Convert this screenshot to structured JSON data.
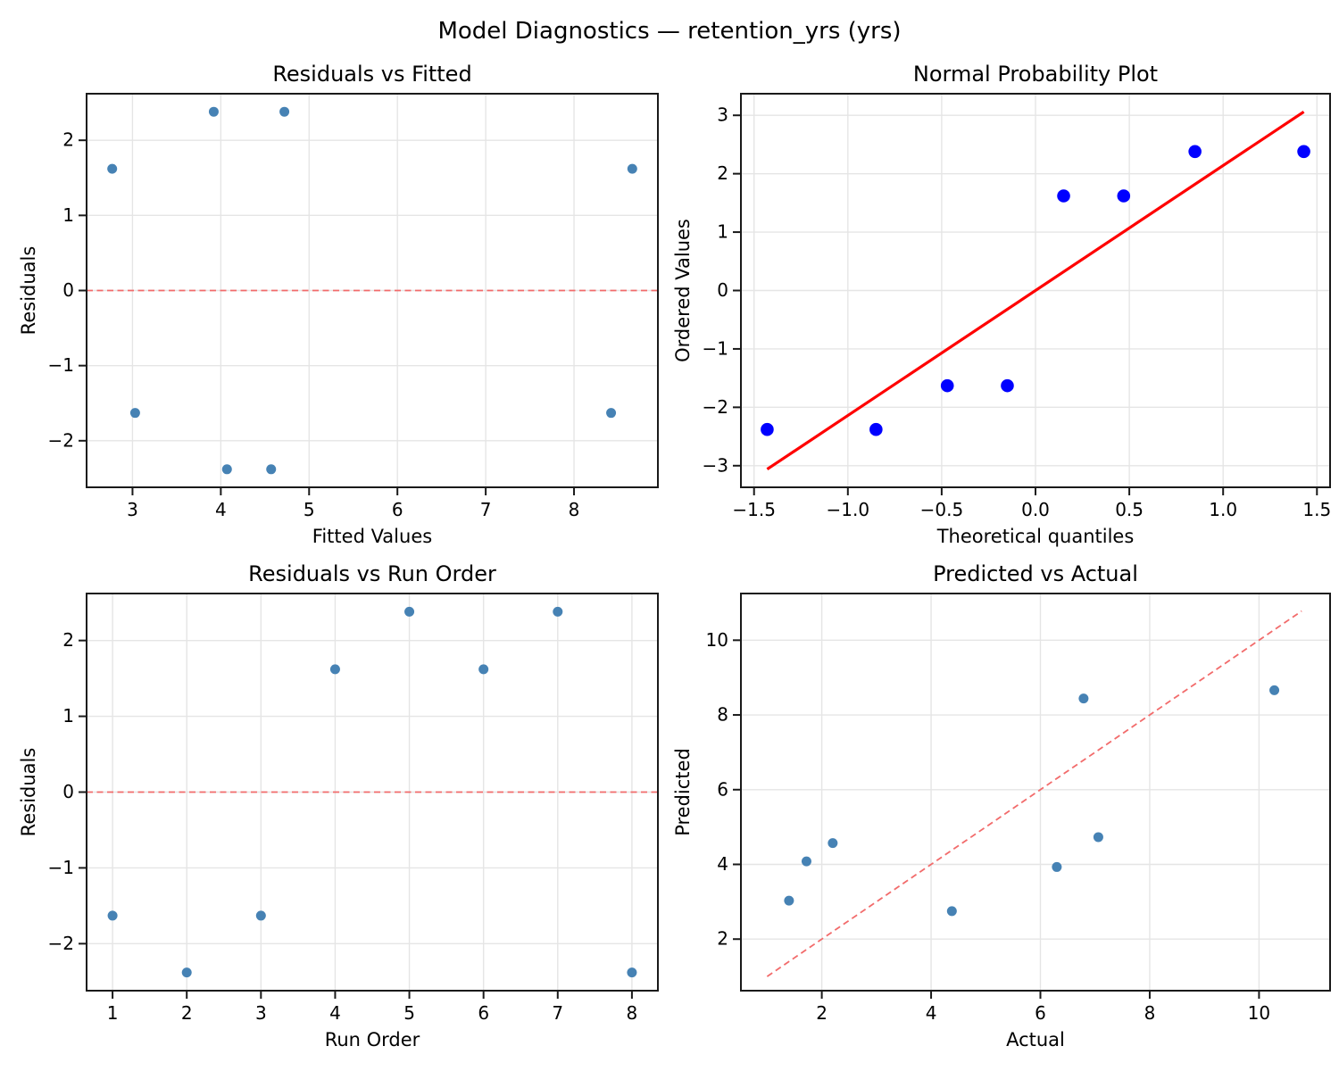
{
  "figure": {
    "suptitle": "Model Diagnostics — retention_yrs (yrs)",
    "colors": {
      "scatter": "#4682B4",
      "prob_marker": "#0000FF",
      "prob_line": "#FF0000",
      "ref_line": "#F26B6B",
      "grid": "#E5E5E5",
      "spine": "#1A1A1A",
      "text": "#000000",
      "background": "#FFFFFF"
    }
  },
  "chart_data": [
    {
      "id": "residuals_vs_fitted",
      "type": "scatter",
      "title": "Residuals vs Fitted",
      "xlabel": "Fitted Values",
      "ylabel": "Residuals",
      "xlim": [
        2.48,
        8.95
      ],
      "ylim": [
        -2.62,
        2.62
      ],
      "xticks": [
        3,
        4,
        5,
        6,
        7,
        8
      ],
      "xtick_labels": [
        "3",
        "4",
        "5",
        "6",
        "7",
        "8"
      ],
      "yticks": [
        -2,
        -1,
        0,
        1,
        2
      ],
      "ytick_labels": [
        "−2",
        "−1",
        "0",
        "1",
        "2"
      ],
      "grid": true,
      "marker": {
        "color": "#4682B4",
        "radius": 5.5
      },
      "points": [
        [
          2.77,
          1.62
        ],
        [
          3.03,
          -1.63
        ],
        [
          3.92,
          2.38
        ],
        [
          4.07,
          -2.38
        ],
        [
          4.57,
          -2.38
        ],
        [
          4.72,
          2.38
        ],
        [
          8.42,
          -1.63
        ],
        [
          8.66,
          1.62
        ]
      ],
      "lines": [
        {
          "name": "zero-residual-line",
          "x1": 2.48,
          "y1": 0,
          "x2": 8.95,
          "y2": 0,
          "color": "#F26B6B",
          "width": 1.8,
          "dash": "7 4.5"
        }
      ]
    },
    {
      "id": "normal_probability_plot",
      "type": "scatter",
      "title": "Normal Probability Plot",
      "xlabel": "Theoretical quantiles",
      "ylabel": "Ordered Values",
      "xlim": [
        -1.57,
        1.57
      ],
      "ylim": [
        -3.37,
        3.37
      ],
      "xticks": [
        -1.5,
        -1.0,
        -0.5,
        0.0,
        0.5,
        1.0,
        1.5
      ],
      "xtick_labels": [
        "−1.5",
        "−1.0",
        "−0.5",
        "0.0",
        "0.5",
        "1.0",
        "1.5"
      ],
      "yticks": [
        -3,
        -2,
        -1,
        0,
        1,
        2,
        3
      ],
      "ytick_labels": [
        "−3",
        "−2",
        "−1",
        "0",
        "1",
        "2",
        "3"
      ],
      "grid": true,
      "marker": {
        "color": "#0000FF",
        "radius": 7.3
      },
      "points": [
        [
          -1.43,
          -2.38
        ],
        [
          -0.85,
          -2.38
        ],
        [
          -0.47,
          -1.63
        ],
        [
          -0.15,
          -1.63
        ],
        [
          0.15,
          1.62
        ],
        [
          0.47,
          1.62
        ],
        [
          0.85,
          2.38
        ],
        [
          1.43,
          2.38
        ]
      ],
      "lines": [
        {
          "name": "normal-fit-line",
          "x1": -1.43,
          "y1": -3.06,
          "x2": 1.43,
          "y2": 3.06,
          "color": "#FF0000",
          "width": 3.2,
          "dash": null
        }
      ]
    },
    {
      "id": "residuals_vs_run_order",
      "type": "scatter",
      "title": "Residuals vs Run Order",
      "xlabel": "Run Order",
      "ylabel": "Residuals",
      "xlim": [
        0.65,
        8.35
      ],
      "ylim": [
        -2.62,
        2.62
      ],
      "xticks": [
        1,
        2,
        3,
        4,
        5,
        6,
        7,
        8
      ],
      "xtick_labels": [
        "1",
        "2",
        "3",
        "4",
        "5",
        "6",
        "7",
        "8"
      ],
      "yticks": [
        -2,
        -1,
        0,
        1,
        2
      ],
      "ytick_labels": [
        "−2",
        "−1",
        "0",
        "1",
        "2"
      ],
      "grid": true,
      "marker": {
        "color": "#4682B4",
        "radius": 5.5
      },
      "points": [
        [
          1,
          -1.63
        ],
        [
          2,
          -2.38
        ],
        [
          3,
          -1.63
        ],
        [
          4,
          1.62
        ],
        [
          5,
          2.38
        ],
        [
          6,
          1.62
        ],
        [
          7,
          2.38
        ],
        [
          8,
          -2.38
        ]
      ],
      "lines": [
        {
          "name": "zero-residual-line",
          "x1": 0.65,
          "y1": 0,
          "x2": 8.35,
          "y2": 0,
          "color": "#F26B6B",
          "width": 1.8,
          "dash": "7 4.5"
        }
      ]
    },
    {
      "id": "predicted_vs_actual",
      "type": "scatter",
      "title": "Predicted vs Actual",
      "xlabel": "Actual",
      "ylabel": "Predicted",
      "xlim": [
        0.52,
        11.3
      ],
      "ylim": [
        0.62,
        11.25
      ],
      "xticks": [
        2,
        4,
        6,
        8,
        10
      ],
      "xtick_labels": [
        "2",
        "4",
        "6",
        "8",
        "10"
      ],
      "yticks": [
        2,
        4,
        6,
        8,
        10
      ],
      "ytick_labels": [
        "2",
        "4",
        "6",
        "8",
        "10"
      ],
      "grid": true,
      "marker": {
        "color": "#4682B4",
        "radius": 5.5
      },
      "points": [
        [
          1.4,
          3.03
        ],
        [
          1.72,
          4.08
        ],
        [
          2.2,
          4.57
        ],
        [
          4.38,
          2.75
        ],
        [
          6.3,
          3.93
        ],
        [
          6.79,
          8.44
        ],
        [
          7.06,
          4.73
        ],
        [
          10.28,
          8.66
        ]
      ],
      "lines": [
        {
          "name": "identity-line",
          "x1": 1.0,
          "y1": 1.0,
          "x2": 10.78,
          "y2": 10.78,
          "color": "#F26B6B",
          "width": 1.8,
          "dash": "7 4.5"
        }
      ]
    }
  ]
}
